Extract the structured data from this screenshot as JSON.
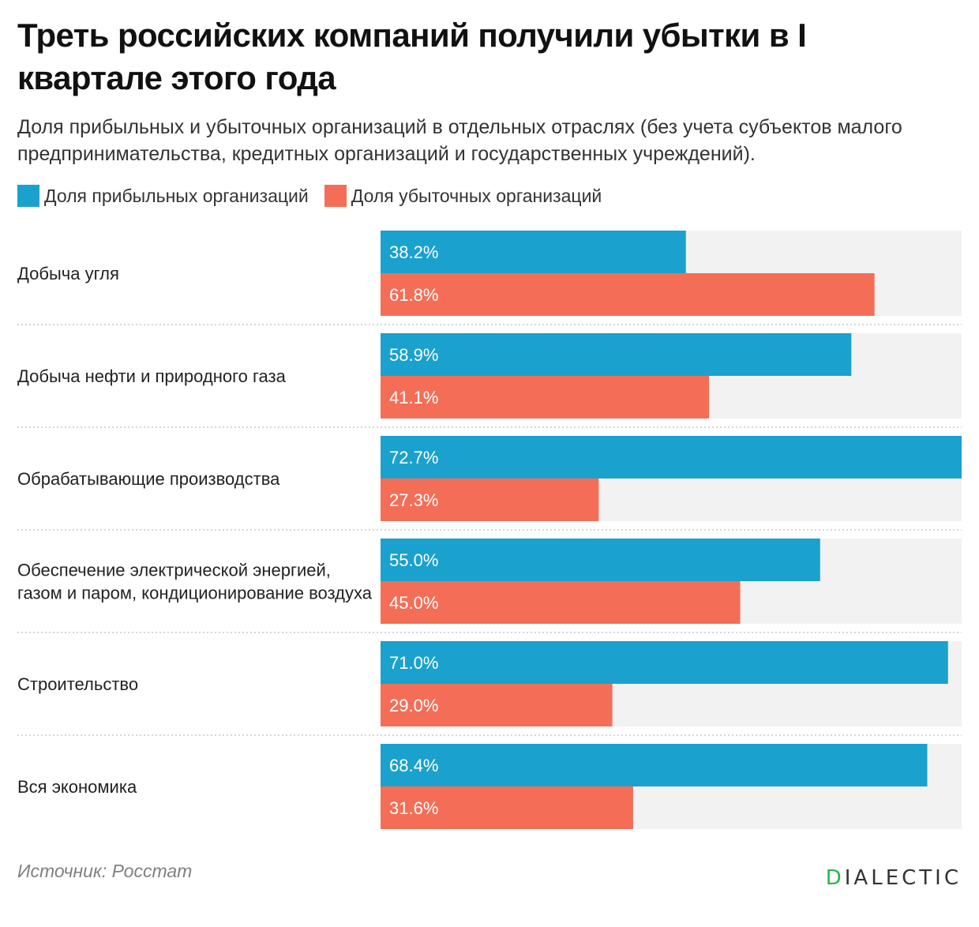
{
  "title": "Треть российских компаний получили убытки в I квартале этого года",
  "subtitle": "Доля прибыльных и убыточных организаций в отдельных отраслях (без учета субъектов малого предпринимательства, кредитных организаций и государственных учреждений).",
  "source": "Источник: Росстат",
  "logo": {
    "first_letter": "D",
    "rest": "IALECTIC",
    "first_letter_color": "#25b84a"
  },
  "colors": {
    "profitable": "#1ba1cd",
    "loss": "#f46e57",
    "track": "#f2f2f2",
    "separator": "#c8c8c8"
  },
  "chart_data": {
    "type": "bar",
    "orientation": "horizontal",
    "categories": [
      "Добыча угля",
      "Добыча нефти и природного газа",
      "Обрабатывающие производства",
      "Обеспечение электрической энергией, газом и паром, кондиционирование воздуха",
      "Строительство",
      "Вся экономика"
    ],
    "series": [
      {
        "name": "Доля прибыльных организаций",
        "values": [
          38.2,
          58.9,
          72.7,
          55.0,
          71.0,
          68.4
        ],
        "labels": [
          "38.2%",
          "58.9%",
          "72.7%",
          "55.0%",
          "71.0%",
          "68.4%"
        ],
        "color": "#1ba1cd"
      },
      {
        "name": "Доля убыточных организаций",
        "values": [
          61.8,
          41.1,
          27.3,
          45.0,
          29.0,
          31.6
        ],
        "labels": [
          "61.8%",
          "41.1%",
          "27.3%",
          "45.0%",
          "29.0%",
          "31.6%"
        ],
        "color": "#f46e57"
      }
    ],
    "xlim": [
      0,
      72.7
    ],
    "grid": false,
    "legend_position": "top-left",
    "title": "",
    "xlabel": "",
    "ylabel": ""
  }
}
